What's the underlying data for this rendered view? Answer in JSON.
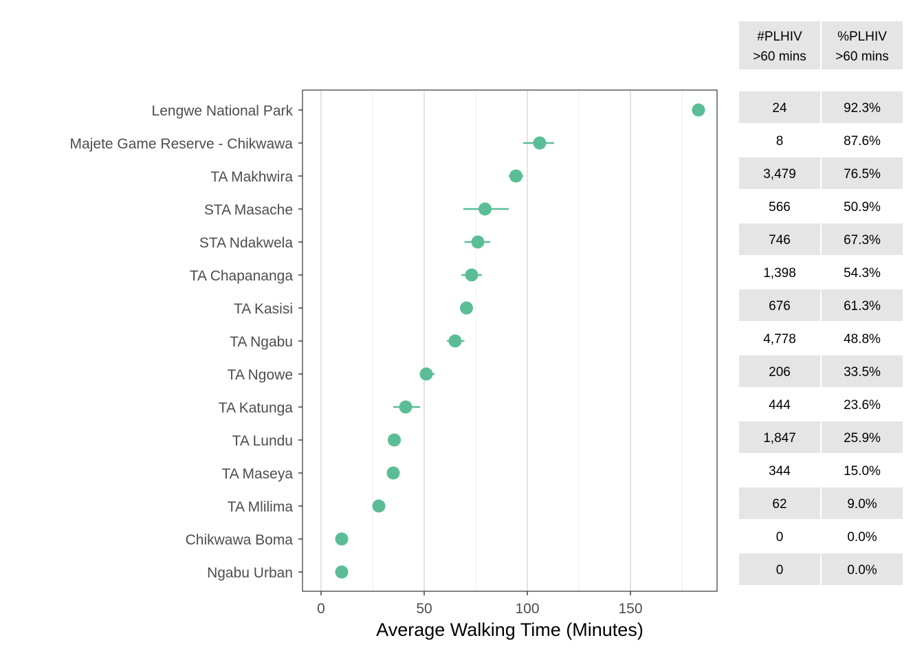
{
  "chart_data": {
    "type": "scatter",
    "title": "",
    "xlabel": "Average Walking Time (Minutes)",
    "ylabel": "",
    "xlim": [
      -9,
      192
    ],
    "x_ticks": [
      0,
      50,
      100,
      150
    ],
    "grid": true,
    "point_color": "#5bbd96",
    "table_fill": "#e5e5e5",
    "table_headers": [
      [
        "#PLHIV",
        ">60 mins"
      ],
      [
        "%PLHIV",
        ">60 mins"
      ]
    ],
    "rows": [
      {
        "label": "Lengwe National Park",
        "x": 183,
        "lo": 183,
        "hi": 183,
        "n": "24",
        "pct": "92.3%"
      },
      {
        "label": "Majete Game Reserve - Chikwawa",
        "x": 106,
        "lo": 98,
        "hi": 113,
        "n": "8",
        "pct": "87.6%"
      },
      {
        "label": "TA Makhwira",
        "x": 94.5,
        "lo": 91,
        "hi": 98,
        "n": "3,479",
        "pct": "76.5%"
      },
      {
        "label": "STA Masache",
        "x": 79.5,
        "lo": 69,
        "hi": 91,
        "n": "566",
        "pct": "50.9%"
      },
      {
        "label": "STA Ndakwela",
        "x": 76,
        "lo": 69.5,
        "hi": 82,
        "n": "746",
        "pct": "67.3%"
      },
      {
        "label": "TA Chapananga",
        "x": 73,
        "lo": 68,
        "hi": 78,
        "n": "1,398",
        "pct": "54.3%"
      },
      {
        "label": "TA Kasisi",
        "x": 70.5,
        "lo": 69,
        "hi": 72,
        "n": "676",
        "pct": "61.3%"
      },
      {
        "label": "TA Ngabu",
        "x": 65,
        "lo": 61,
        "hi": 69.5,
        "n": "4,778",
        "pct": "48.8%"
      },
      {
        "label": "TA Ngowe",
        "x": 51,
        "lo": 48.5,
        "hi": 55,
        "n": "206",
        "pct": "33.5%"
      },
      {
        "label": "TA Katunga",
        "x": 41,
        "lo": 35,
        "hi": 48,
        "n": "444",
        "pct": "23.6%"
      },
      {
        "label": "TA Lundu",
        "x": 35.5,
        "lo": 35,
        "hi": 36,
        "n": "1,847",
        "pct": "25.9%"
      },
      {
        "label": "TA Maseya",
        "x": 35,
        "lo": 34.5,
        "hi": 35.5,
        "n": "344",
        "pct": "15.0%"
      },
      {
        "label": "TA Mlilima",
        "x": 28,
        "lo": 27.5,
        "hi": 28.5,
        "n": "62",
        "pct": "9.0%"
      },
      {
        "label": "Chikwawa Boma",
        "x": 10,
        "lo": 9.5,
        "hi": 10.5,
        "n": "0",
        "pct": "0.0%"
      },
      {
        "label": "Ngabu Urban",
        "x": 10,
        "lo": 9.5,
        "hi": 10.5,
        "n": "0",
        "pct": "0.0%"
      }
    ]
  }
}
